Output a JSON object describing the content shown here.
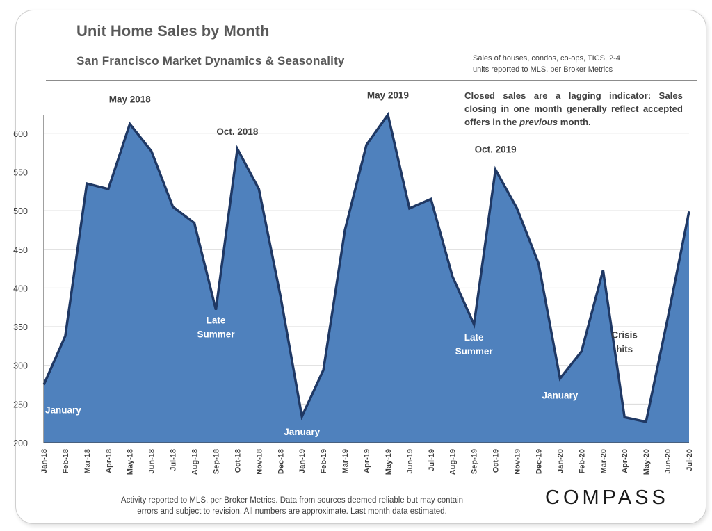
{
  "header": {
    "title": "Unit Home Sales by Month",
    "subtitle": "San Francisco Market Dynamics & Seasonality",
    "source_note_line1": "Sales of houses, condos, co-ops, TICS, 2-4",
    "source_note_line2": "units reported to MLS, per Broker Metrics"
  },
  "callout": {
    "part1": "Closed sales are a lagging indicator: Sales closing in one month generally reflect accepted offers in the ",
    "emphasis": "previous",
    "part2": " month."
  },
  "footer": {
    "line1": "Activity reported to MLS, per Broker Metrics. Data from sources deemed reliable but may contain",
    "line2": "errors and subject to revision. All numbers are approximate. Last month data estimated."
  },
  "logo": {
    "text": "COMPASS"
  },
  "chart_data": {
    "type": "area",
    "title": "Unit Home Sales by Month",
    "subtitle": "San Francisco Market Dynamics & Seasonality",
    "xlabel": "",
    "ylabel": "",
    "ylim": [
      200,
      625
    ],
    "yticks": [
      200,
      250,
      300,
      350,
      400,
      450,
      500,
      550,
      600
    ],
    "grid": true,
    "fill_color": "#4f81bd",
    "line_color": "#1f3864",
    "categories": [
      "Jan-18",
      "Feb-18",
      "Mar-18",
      "Apr-18",
      "May-18",
      "Jun-18",
      "Jul-18",
      "Aug-18",
      "Sep-18",
      "Oct-18",
      "Nov-18",
      "Dec-18",
      "Jan-19",
      "Feb-19",
      "Mar-19",
      "Apr-19",
      "May-19",
      "Jun-19",
      "Jul-19",
      "Aug-19",
      "Sep-19",
      "Oct-19",
      "Nov-19",
      "Dec-19",
      "Jan-20",
      "Feb-20",
      "Mar-20",
      "Apr-20",
      "May-20",
      "Jun-20",
      "Jul-20"
    ],
    "values": [
      275,
      338,
      535,
      528,
      612,
      577,
      505,
      484,
      372,
      580,
      528,
      390,
      234,
      294,
      475,
      585,
      624,
      503,
      515,
      415,
      353,
      553,
      503,
      432,
      283,
      318,
      423,
      233,
      227,
      360,
      499
    ],
    "annotations": [
      {
        "text": "January",
        "index": 0,
        "value": 238,
        "color": "#ffffff"
      },
      {
        "text": "May 2018",
        "index": 4,
        "value": 640,
        "color": "#404040"
      },
      {
        "text": "Oct. 2018",
        "index": 9,
        "value": 598,
        "color": "#404040"
      },
      {
        "text": "Late",
        "index": 8,
        "value": 354,
        "color": "#ffffff"
      },
      {
        "text": "Summer",
        "index": 8,
        "value": 336,
        "color": "#ffffff"
      },
      {
        "text": "January",
        "index": 12,
        "value": 210,
        "color": "#ffffff"
      },
      {
        "text": "May 2019",
        "index": 16,
        "value": 645,
        "color": "#404040"
      },
      {
        "text": "Oct. 2019",
        "index": 21,
        "value": 575,
        "color": "#404040"
      },
      {
        "text": "Late",
        "index": 20,
        "value": 332,
        "color": "#ffffff"
      },
      {
        "text": "Summer",
        "index": 20,
        "value": 314,
        "color": "#ffffff"
      },
      {
        "text": "January",
        "index": 24,
        "value": 257,
        "color": "#ffffff"
      },
      {
        "text": "Crisis",
        "index": 27,
        "value": 335,
        "color": "#404040"
      },
      {
        "text": "hits",
        "index": 27,
        "value": 317,
        "color": "#404040"
      }
    ]
  }
}
